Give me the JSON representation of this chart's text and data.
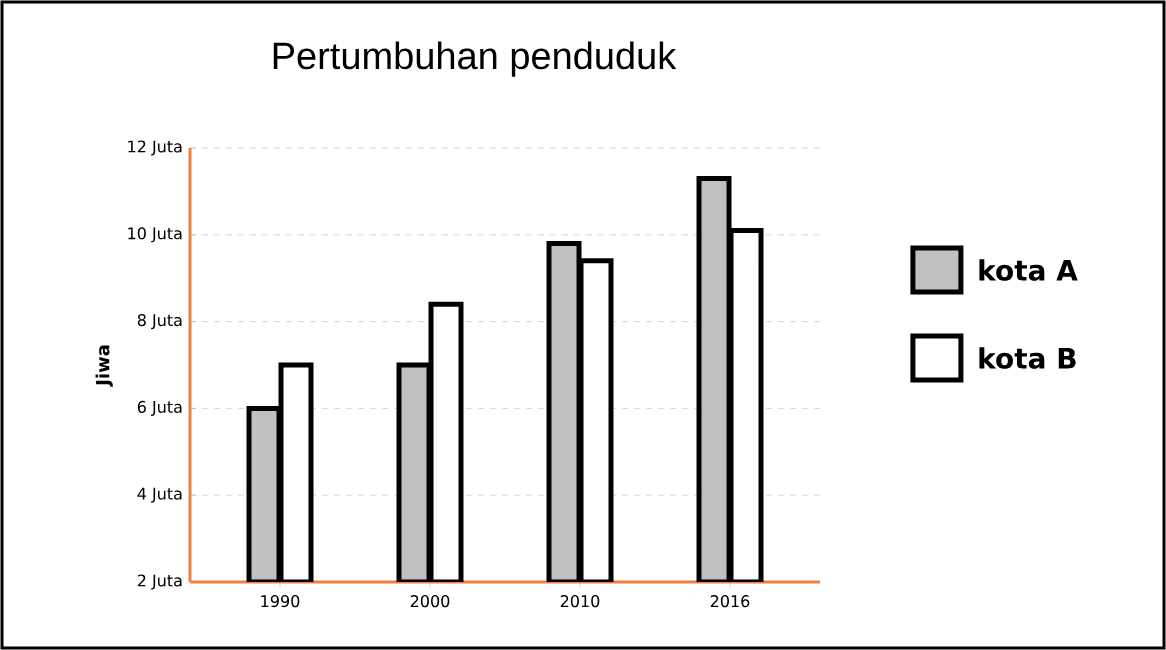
{
  "chart_data": {
    "type": "bar",
    "title": "Pertumbuhan penduduk",
    "ylabel": "Jiwa",
    "categories": [
      "1990",
      "2000",
      "2010",
      "2016"
    ],
    "series": [
      {
        "name": "kota A",
        "color": "#c0c0c0",
        "values": [
          6,
          7,
          9.8,
          11.3
        ]
      },
      {
        "name": "kota B",
        "color": "#ffffff",
        "values": [
          7,
          8.4,
          9.4,
          10.1
        ]
      }
    ],
    "ylim": [
      2,
      12
    ],
    "yticks": [
      {
        "value": 2,
        "label": "2 Juta"
      },
      {
        "value": 4,
        "label": "4 Juta"
      },
      {
        "value": 6,
        "label": "6 Juta"
      },
      {
        "value": 8,
        "label": "8 Juta"
      },
      {
        "value": 10,
        "label": "10 Juta"
      },
      {
        "value": 12,
        "label": "12 Juta"
      }
    ],
    "grid": "y",
    "legend": "right"
  }
}
